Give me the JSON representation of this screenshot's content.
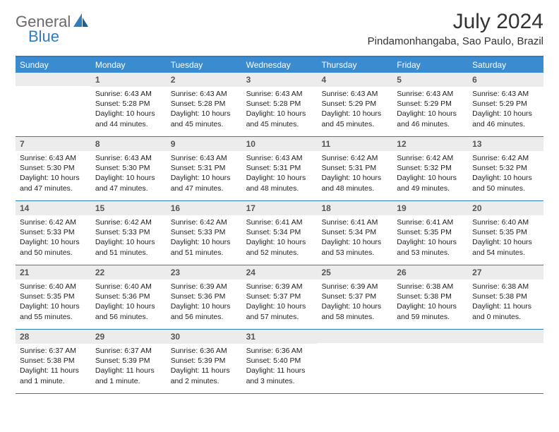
{
  "brand": {
    "part1": "General",
    "part2": "Blue"
  },
  "title": "July 2024",
  "location": "Pindamonhangaba, Sao Paulo, Brazil",
  "colors": {
    "header_bar": "#3a8bd0",
    "border": "#2f7bbf",
    "daynum_bg": "#ececec",
    "logo_gray": "#6a6a6a",
    "logo_blue": "#2f7bbf"
  },
  "weekdays": [
    "Sunday",
    "Monday",
    "Tuesday",
    "Wednesday",
    "Thursday",
    "Friday",
    "Saturday"
  ],
  "weeks": [
    [
      {
        "n": "",
        "sunrise": "",
        "sunset": "",
        "daylight": ""
      },
      {
        "n": "1",
        "sunrise": "Sunrise: 6:43 AM",
        "sunset": "Sunset: 5:28 PM",
        "daylight": "Daylight: 10 hours and 44 minutes."
      },
      {
        "n": "2",
        "sunrise": "Sunrise: 6:43 AM",
        "sunset": "Sunset: 5:28 PM",
        "daylight": "Daylight: 10 hours and 45 minutes."
      },
      {
        "n": "3",
        "sunrise": "Sunrise: 6:43 AM",
        "sunset": "Sunset: 5:28 PM",
        "daylight": "Daylight: 10 hours and 45 minutes."
      },
      {
        "n": "4",
        "sunrise": "Sunrise: 6:43 AM",
        "sunset": "Sunset: 5:29 PM",
        "daylight": "Daylight: 10 hours and 45 minutes."
      },
      {
        "n": "5",
        "sunrise": "Sunrise: 6:43 AM",
        "sunset": "Sunset: 5:29 PM",
        "daylight": "Daylight: 10 hours and 46 minutes."
      },
      {
        "n": "6",
        "sunrise": "Sunrise: 6:43 AM",
        "sunset": "Sunset: 5:29 PM",
        "daylight": "Daylight: 10 hours and 46 minutes."
      }
    ],
    [
      {
        "n": "7",
        "sunrise": "Sunrise: 6:43 AM",
        "sunset": "Sunset: 5:30 PM",
        "daylight": "Daylight: 10 hours and 47 minutes."
      },
      {
        "n": "8",
        "sunrise": "Sunrise: 6:43 AM",
        "sunset": "Sunset: 5:30 PM",
        "daylight": "Daylight: 10 hours and 47 minutes."
      },
      {
        "n": "9",
        "sunrise": "Sunrise: 6:43 AM",
        "sunset": "Sunset: 5:31 PM",
        "daylight": "Daylight: 10 hours and 47 minutes."
      },
      {
        "n": "10",
        "sunrise": "Sunrise: 6:43 AM",
        "sunset": "Sunset: 5:31 PM",
        "daylight": "Daylight: 10 hours and 48 minutes."
      },
      {
        "n": "11",
        "sunrise": "Sunrise: 6:42 AM",
        "sunset": "Sunset: 5:31 PM",
        "daylight": "Daylight: 10 hours and 48 minutes."
      },
      {
        "n": "12",
        "sunrise": "Sunrise: 6:42 AM",
        "sunset": "Sunset: 5:32 PM",
        "daylight": "Daylight: 10 hours and 49 minutes."
      },
      {
        "n": "13",
        "sunrise": "Sunrise: 6:42 AM",
        "sunset": "Sunset: 5:32 PM",
        "daylight": "Daylight: 10 hours and 50 minutes."
      }
    ],
    [
      {
        "n": "14",
        "sunrise": "Sunrise: 6:42 AM",
        "sunset": "Sunset: 5:33 PM",
        "daylight": "Daylight: 10 hours and 50 minutes."
      },
      {
        "n": "15",
        "sunrise": "Sunrise: 6:42 AM",
        "sunset": "Sunset: 5:33 PM",
        "daylight": "Daylight: 10 hours and 51 minutes."
      },
      {
        "n": "16",
        "sunrise": "Sunrise: 6:42 AM",
        "sunset": "Sunset: 5:33 PM",
        "daylight": "Daylight: 10 hours and 51 minutes."
      },
      {
        "n": "17",
        "sunrise": "Sunrise: 6:41 AM",
        "sunset": "Sunset: 5:34 PM",
        "daylight": "Daylight: 10 hours and 52 minutes."
      },
      {
        "n": "18",
        "sunrise": "Sunrise: 6:41 AM",
        "sunset": "Sunset: 5:34 PM",
        "daylight": "Daylight: 10 hours and 53 minutes."
      },
      {
        "n": "19",
        "sunrise": "Sunrise: 6:41 AM",
        "sunset": "Sunset: 5:35 PM",
        "daylight": "Daylight: 10 hours and 53 minutes."
      },
      {
        "n": "20",
        "sunrise": "Sunrise: 6:40 AM",
        "sunset": "Sunset: 5:35 PM",
        "daylight": "Daylight: 10 hours and 54 minutes."
      }
    ],
    [
      {
        "n": "21",
        "sunrise": "Sunrise: 6:40 AM",
        "sunset": "Sunset: 5:35 PM",
        "daylight": "Daylight: 10 hours and 55 minutes."
      },
      {
        "n": "22",
        "sunrise": "Sunrise: 6:40 AM",
        "sunset": "Sunset: 5:36 PM",
        "daylight": "Daylight: 10 hours and 56 minutes."
      },
      {
        "n": "23",
        "sunrise": "Sunrise: 6:39 AM",
        "sunset": "Sunset: 5:36 PM",
        "daylight": "Daylight: 10 hours and 56 minutes."
      },
      {
        "n": "24",
        "sunrise": "Sunrise: 6:39 AM",
        "sunset": "Sunset: 5:37 PM",
        "daylight": "Daylight: 10 hours and 57 minutes."
      },
      {
        "n": "25",
        "sunrise": "Sunrise: 6:39 AM",
        "sunset": "Sunset: 5:37 PM",
        "daylight": "Daylight: 10 hours and 58 minutes."
      },
      {
        "n": "26",
        "sunrise": "Sunrise: 6:38 AM",
        "sunset": "Sunset: 5:38 PM",
        "daylight": "Daylight: 10 hours and 59 minutes."
      },
      {
        "n": "27",
        "sunrise": "Sunrise: 6:38 AM",
        "sunset": "Sunset: 5:38 PM",
        "daylight": "Daylight: 11 hours and 0 minutes."
      }
    ],
    [
      {
        "n": "28",
        "sunrise": "Sunrise: 6:37 AM",
        "sunset": "Sunset: 5:38 PM",
        "daylight": "Daylight: 11 hours and 1 minute."
      },
      {
        "n": "29",
        "sunrise": "Sunrise: 6:37 AM",
        "sunset": "Sunset: 5:39 PM",
        "daylight": "Daylight: 11 hours and 1 minute."
      },
      {
        "n": "30",
        "sunrise": "Sunrise: 6:36 AM",
        "sunset": "Sunset: 5:39 PM",
        "daylight": "Daylight: 11 hours and 2 minutes."
      },
      {
        "n": "31",
        "sunrise": "Sunrise: 6:36 AM",
        "sunset": "Sunset: 5:40 PM",
        "daylight": "Daylight: 11 hours and 3 minutes."
      },
      {
        "n": "",
        "sunrise": "",
        "sunset": "",
        "daylight": ""
      },
      {
        "n": "",
        "sunrise": "",
        "sunset": "",
        "daylight": ""
      },
      {
        "n": "",
        "sunrise": "",
        "sunset": "",
        "daylight": ""
      }
    ]
  ]
}
